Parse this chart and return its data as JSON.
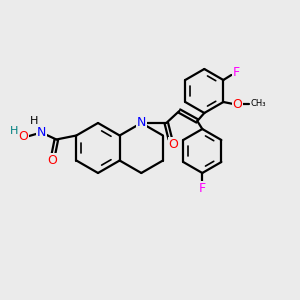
{
  "background_color": "#ebebeb",
  "bond_color": "#000000",
  "atom_colors": {
    "N": "#0000ff",
    "O": "#ff0000",
    "F": "#ff00ff",
    "H": "#008080",
    "C": "#000000"
  },
  "figsize": [
    3.0,
    3.0
  ],
  "dpi": 100
}
